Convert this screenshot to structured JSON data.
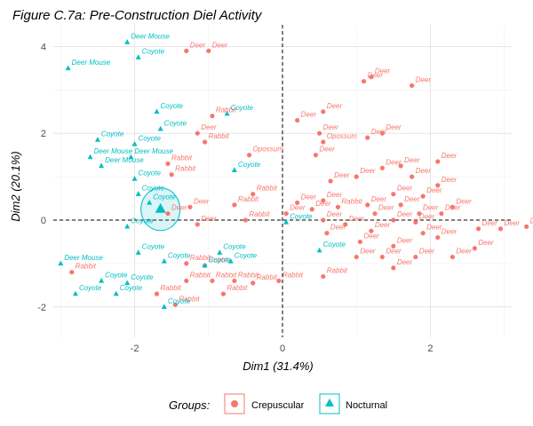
{
  "chart_data": {
    "type": "scatter",
    "title": "Figure C.7a: Pre-Construction Diel Activity",
    "xlabel": "Dim1 (31.4%)",
    "ylabel": "Dim2 (20.1%)",
    "xlim": [
      -3.1,
      3.1
    ],
    "ylim": [
      -2.7,
      4.5
    ],
    "xticks": [
      -2,
      0,
      2
    ],
    "yticks": [
      -2,
      0,
      2,
      4
    ],
    "grid": true,
    "reference_lines": {
      "x": 0,
      "y": 0,
      "style": "dashed"
    },
    "legend": {
      "title": "Groups:",
      "position": "bottom",
      "entries": [
        {
          "name": "Crepuscular",
          "color": "#F8766D",
          "shape": "circle"
        },
        {
          "name": "Nocturnal",
          "color": "#00BFC4",
          "shape": "triangle"
        }
      ]
    },
    "series": [
      {
        "name": "Crepuscular",
        "color": "#F8766D",
        "shape": "circle",
        "points": [
          {
            "x": -1.3,
            "y": 3.9,
            "label": "Deer"
          },
          {
            "x": -1.0,
            "y": 3.9,
            "label": "Deer"
          },
          {
            "x": 1.2,
            "y": 3.3,
            "label": "Deer"
          },
          {
            "x": 1.1,
            "y": 3.2,
            "label": "Deer"
          },
          {
            "x": 1.75,
            "y": 3.1,
            "label": "Deer"
          },
          {
            "x": 0.55,
            "y": 2.5,
            "label": "Deer"
          },
          {
            "x": -0.95,
            "y": 2.4,
            "label": "Rabbit"
          },
          {
            "x": 0.2,
            "y": 2.3,
            "label": "Deer"
          },
          {
            "x": 0.5,
            "y": 2.0,
            "label": "Deer"
          },
          {
            "x": -1.15,
            "y": 2.0,
            "label": "Deer"
          },
          {
            "x": 0.55,
            "y": 1.8,
            "label": "Opossum"
          },
          {
            "x": 1.35,
            "y": 2.0,
            "label": "Deer"
          },
          {
            "x": 1.15,
            "y": 1.9,
            "label": "Deer"
          },
          {
            "x": -1.05,
            "y": 1.8,
            "label": "Rabbit"
          },
          {
            "x": 0.45,
            "y": 1.5,
            "label": "Deer"
          },
          {
            "x": -0.45,
            "y": 1.5,
            "label": "Opossum"
          },
          {
            "x": -1.55,
            "y": 1.3,
            "label": "Rabbit"
          },
          {
            "x": 1.35,
            "y": 1.2,
            "label": "Deer"
          },
          {
            "x": 1.6,
            "y": 1.25,
            "label": "Deer"
          },
          {
            "x": 2.1,
            "y": 1.35,
            "label": "Deer"
          },
          {
            "x": 1.0,
            "y": 1.0,
            "label": "Deer"
          },
          {
            "x": -1.5,
            "y": 1.05,
            "label": "Rabbit"
          },
          {
            "x": 1.75,
            "y": 1.0,
            "label": "Deer"
          },
          {
            "x": 2.1,
            "y": 0.8,
            "label": "Deer"
          },
          {
            "x": 0.65,
            "y": 0.9,
            "label": "Deer"
          },
          {
            "x": 1.5,
            "y": 0.6,
            "label": "Deer"
          },
          {
            "x": 1.9,
            "y": 0.55,
            "label": "Deer"
          },
          {
            "x": -0.4,
            "y": 0.6,
            "label": "Rabbit"
          },
          {
            "x": 0.2,
            "y": 0.4,
            "label": "Deer"
          },
          {
            "x": 0.55,
            "y": 0.45,
            "label": "Deer"
          },
          {
            "x": -0.65,
            "y": 0.35,
            "label": "Rabbit"
          },
          {
            "x": -1.25,
            "y": 0.3,
            "label": "Deer"
          },
          {
            "x": 0.4,
            "y": 0.25,
            "label": "Deer"
          },
          {
            "x": 0.75,
            "y": 0.3,
            "label": "Rabbit"
          },
          {
            "x": 1.15,
            "y": 0.35,
            "label": "Deer"
          },
          {
            "x": 1.6,
            "y": 0.35,
            "label": "Deer"
          },
          {
            "x": 2.3,
            "y": 0.3,
            "label": "Deer"
          },
          {
            "x": 0.05,
            "y": 0.15,
            "label": "Deer"
          },
          {
            "x": 1.25,
            "y": 0.15,
            "label": "Deer"
          },
          {
            "x": 1.85,
            "y": 0.15,
            "label": "Deer"
          },
          {
            "x": 2.15,
            "y": 0.15,
            "label": "Deer"
          },
          {
            "x": -1.55,
            "y": 0.15,
            "label": "Deer"
          },
          {
            "x": -0.5,
            "y": 0.0,
            "label": "Rabbit"
          },
          {
            "x": 0.55,
            "y": 0.0,
            "label": "Deer"
          },
          {
            "x": 1.5,
            "y": 0.0,
            "label": "Deer"
          },
          {
            "x": 1.8,
            "y": -0.05,
            "label": "Deer"
          },
          {
            "x": 2.65,
            "y": -0.2,
            "label": "Deer"
          },
          {
            "x": 2.95,
            "y": -0.2,
            "label": "Deer"
          },
          {
            "x": 3.3,
            "y": -0.15,
            "label": "Deer"
          },
          {
            "x": -1.15,
            "y": -0.1,
            "label": "Deer"
          },
          {
            "x": 0.85,
            "y": -0.1,
            "label": "Deer"
          },
          {
            "x": 1.9,
            "y": -0.3,
            "label": "Deer"
          },
          {
            "x": 1.2,
            "y": -0.25,
            "label": "Deer"
          },
          {
            "x": 0.6,
            "y": -0.3,
            "label": "Deer"
          },
          {
            "x": 2.1,
            "y": -0.4,
            "label": "Deer"
          },
          {
            "x": 1.05,
            "y": -0.5,
            "label": "Deer"
          },
          {
            "x": 1.5,
            "y": -0.6,
            "label": "Deer"
          },
          {
            "x": 2.6,
            "y": -0.65,
            "label": "Deer"
          },
          {
            "x": 1.35,
            "y": -0.85,
            "label": "Deer"
          },
          {
            "x": 1.8,
            "y": -0.85,
            "label": "Deer"
          },
          {
            "x": 2.3,
            "y": -0.85,
            "label": "Deer"
          },
          {
            "x": 1.0,
            "y": -0.85,
            "label": "Deer"
          },
          {
            "x": 1.5,
            "y": -1.1,
            "label": "Deer"
          },
          {
            "x": -1.3,
            "y": -1.0,
            "label": "Rabbit"
          },
          {
            "x": -1.05,
            "y": -1.05,
            "label": "Rabbit"
          },
          {
            "x": 0.55,
            "y": -1.3,
            "label": "Rabbit"
          },
          {
            "x": -0.05,
            "y": -1.4,
            "label": "Rabbit"
          },
          {
            "x": -0.65,
            "y": -1.4,
            "label": "Rabbit"
          },
          {
            "x": -1.3,
            "y": -1.4,
            "label": "Rabbit"
          },
          {
            "x": -0.95,
            "y": -1.4,
            "label": "Rabbit"
          },
          {
            "x": -0.4,
            "y": -1.45,
            "label": "Rabbit"
          },
          {
            "x": -0.8,
            "y": -1.7,
            "label": "Rabbit"
          },
          {
            "x": -1.7,
            "y": -1.7,
            "label": "Rabbit"
          },
          {
            "x": -1.45,
            "y": -1.95,
            "label": "Rabbit"
          },
          {
            "x": -2.85,
            "y": -1.2,
            "label": "Rabbit"
          }
        ]
      },
      {
        "name": "Nocturnal",
        "color": "#00BFC4",
        "shape": "triangle",
        "points": [
          {
            "x": -2.1,
            "y": 4.1,
            "label": "Deer Mouse"
          },
          {
            "x": -2.9,
            "y": 3.5,
            "label": "Deer Mouse"
          },
          {
            "x": -1.95,
            "y": 3.75,
            "label": "Coyote"
          },
          {
            "x": -1.7,
            "y": 2.5,
            "label": "Coyote"
          },
          {
            "x": -0.75,
            "y": 2.45,
            "label": "Coyote"
          },
          {
            "x": -2.5,
            "y": 1.85,
            "label": "Coyote"
          },
          {
            "x": -1.65,
            "y": 2.1,
            "label": "Coyote"
          },
          {
            "x": -2.0,
            "y": 1.75,
            "label": "Coyote"
          },
          {
            "x": -2.6,
            "y": 1.45,
            "label": "Deer Mouse"
          },
          {
            "x": -2.05,
            "y": 1.45,
            "label": "Deer Mouse"
          },
          {
            "x": -2.45,
            "y": 1.25,
            "label": "Deer Mouse"
          },
          {
            "x": -0.65,
            "y": 1.15,
            "label": "Coyote"
          },
          {
            "x": -2.0,
            "y": 0.95,
            "label": "Coyote"
          },
          {
            "x": -1.95,
            "y": 0.6,
            "label": "Coyote"
          },
          {
            "x": -1.8,
            "y": 0.4,
            "label": "Coyote"
          },
          {
            "x": -2.1,
            "y": -0.15,
            "label": "Coyote"
          },
          {
            "x": 0.05,
            "y": -0.05,
            "label": "Coyote"
          },
          {
            "x": -1.95,
            "y": -0.75,
            "label": "Coyote"
          },
          {
            "x": -0.85,
            "y": -0.75,
            "label": "Coyote"
          },
          {
            "x": -1.6,
            "y": -0.95,
            "label": "Coyote"
          },
          {
            "x": -0.7,
            "y": -0.95,
            "label": "Coyote"
          },
          {
            "x": -1.05,
            "y": -1.05,
            "label": "Coyote"
          },
          {
            "x": 0.5,
            "y": -0.7,
            "label": "Coyote"
          },
          {
            "x": -3.0,
            "y": -1.0,
            "label": "Deer Mouse"
          },
          {
            "x": -2.45,
            "y": -1.4,
            "label": "Coyote"
          },
          {
            "x": -2.1,
            "y": -1.45,
            "label": "Coyote"
          },
          {
            "x": -2.8,
            "y": -1.7,
            "label": "Coyote"
          },
          {
            "x": -2.25,
            "y": -1.7,
            "label": "Coyote"
          },
          {
            "x": -1.6,
            "y": -2.0,
            "label": "Coyote"
          }
        ]
      }
    ],
    "centroid": {
      "group": "Nocturnal",
      "x": -1.65,
      "y": 0.25
    }
  }
}
